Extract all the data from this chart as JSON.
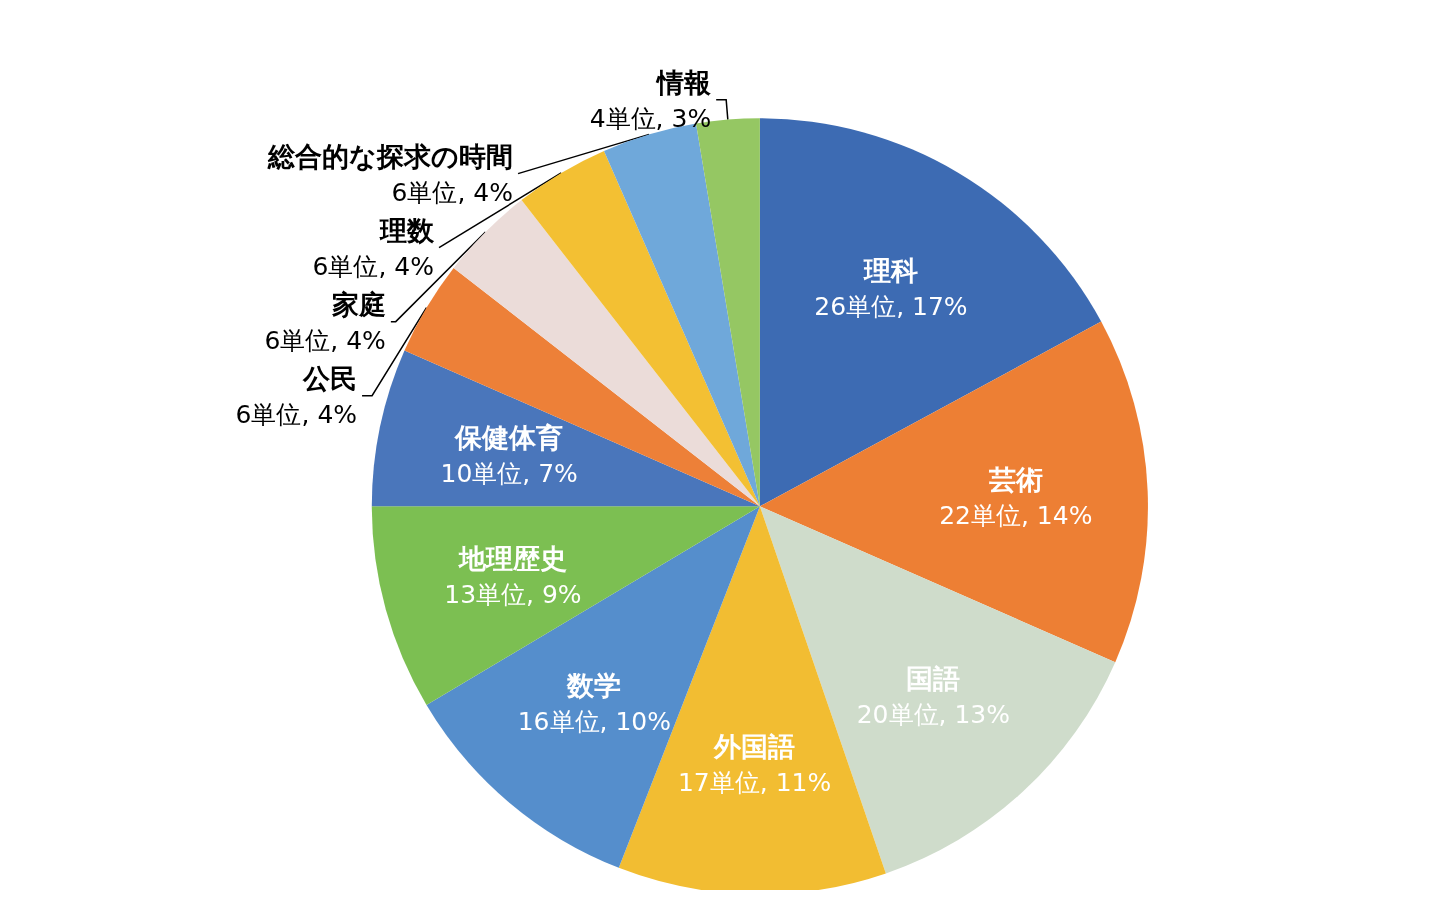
{
  "chart_data": {
    "type": "pie",
    "categories": [
      "理科",
      "芸術",
      "国語",
      "外国語",
      "数学",
      "地理歴史",
      "保健体育",
      "公民",
      "家庭",
      "理数",
      "総合的な探求の時間",
      "情報"
    ],
    "values": [
      26,
      22,
      20,
      17,
      16,
      13,
      10,
      6,
      6,
      6,
      6,
      4
    ],
    "value_labels": [
      "26単位, 17%",
      "22単位, 14%",
      "20単位, 13%",
      "17単位, 11%",
      "16単位, 10%",
      "13単位, 9%",
      "10単位, 7%",
      "6単位, 4%",
      "6単位, 4%",
      "6単位, 4%",
      "6単位, 4%",
      "4単位, 3%"
    ],
    "colors": [
      "#3d6bb3",
      "#ed7f34",
      "#cfdccb",
      "#f2bd32",
      "#558ecc",
      "#7cbf52",
      "#4a76bb",
      "#ed8038",
      "#ebdcd9",
      "#f3c033",
      "#6fa8da",
      "#95c763"
    ],
    "legend": false
  }
}
